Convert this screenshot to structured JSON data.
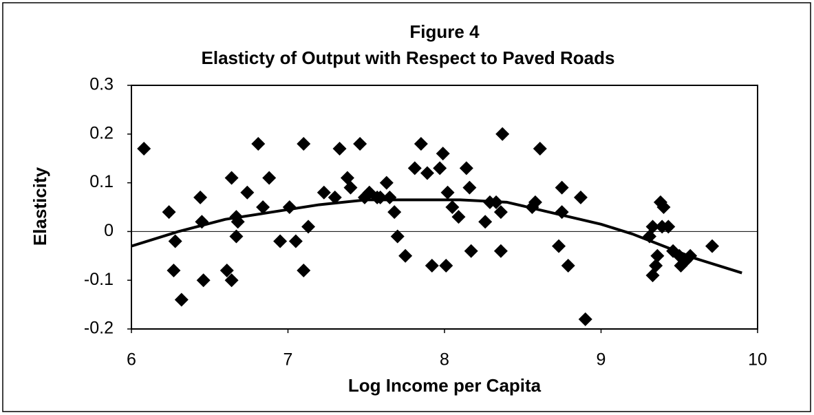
{
  "chart_data": {
    "type": "scatter",
    "title": "Figure 4",
    "subtitle": "Elasticty of Output with Respect to Paved Roads",
    "x_label": "Log Income per Capita",
    "y_label": "Elasticity",
    "xlim": [
      6,
      10
    ],
    "ylim": [
      -0.2,
      0.3
    ],
    "xticks": [
      6,
      7,
      8,
      9,
      10
    ],
    "yticks": [
      0.3,
      0.2,
      0.1,
      0,
      -0.1,
      -0.2
    ],
    "reference_line": 0,
    "series": [
      {
        "type": "scatter",
        "color": "#000000",
        "x": [
          6.08,
          6.24,
          6.28,
          6.27,
          6.32,
          6.44,
          6.45,
          6.46,
          6.61,
          6.64,
          6.64,
          6.67,
          6.68,
          6.67,
          6.74,
          6.81,
          6.84,
          6.88,
          6.95,
          7.01,
          7.05,
          7.1,
          7.1,
          7.13,
          7.23,
          7.3,
          7.33,
          7.38,
          7.4,
          7.46,
          7.49,
          7.52,
          7.57,
          7.59,
          7.63,
          7.65,
          7.68,
          7.7,
          7.75,
          7.81,
          7.85,
          7.89,
          7.92,
          7.97,
          7.99,
          8.01,
          8.02,
          8.05,
          8.09,
          8.14,
          8.16,
          8.17,
          8.26,
          8.29,
          8.33,
          8.36,
          8.36,
          8.37,
          8.56,
          8.58,
          8.61,
          8.73,
          8.75,
          8.75,
          8.79,
          8.87,
          8.9,
          9.31,
          9.33,
          9.33,
          9.35,
          9.36,
          9.38,
          9.39,
          9.4,
          9.43,
          9.46,
          9.5,
          9.51,
          9.54,
          9.57,
          9.71
        ],
        "values": [
          0.17,
          0.04,
          -0.02,
          -0.08,
          -0.14,
          0.07,
          0.02,
          -0.1,
          -0.08,
          -0.1,
          0.11,
          0.03,
          0.02,
          -0.01,
          0.08,
          0.18,
          0.05,
          0.11,
          -0.02,
          0.05,
          -0.02,
          0.18,
          -0.08,
          0.01,
          0.08,
          0.07,
          0.17,
          0.11,
          0.09,
          0.18,
          0.07,
          0.08,
          0.07,
          0.07,
          0.1,
          0.07,
          0.04,
          -0.01,
          -0.05,
          0.13,
          0.18,
          0.12,
          -0.07,
          0.13,
          0.16,
          -0.07,
          0.08,
          0.05,
          0.03,
          0.13,
          0.09,
          -0.04,
          0.02,
          0.06,
          0.06,
          0.04,
          -0.04,
          0.2,
          0.05,
          0.06,
          0.17,
          -0.03,
          0.09,
          0.04,
          -0.07,
          0.07,
          -0.18,
          -0.01,
          0.01,
          -0.09,
          -0.07,
          -0.05,
          0.06,
          0.01,
          0.05,
          0.01,
          -0.04,
          -0.05,
          -0.07,
          -0.06,
          -0.05,
          -0.03
        ]
      },
      {
        "type": "line",
        "color": "#000000",
        "x": [
          6.0,
          6.3,
          6.6,
          6.9,
          7.2,
          7.5,
          7.8,
          8.1,
          8.4,
          8.6,
          8.8,
          9.0,
          9.2,
          9.4,
          9.6,
          9.9
        ],
        "values": [
          -0.03,
          0.0,
          0.025,
          0.04,
          0.055,
          0.065,
          0.065,
          0.065,
          0.06,
          0.045,
          0.03,
          0.015,
          -0.005,
          -0.03,
          -0.055,
          -0.085
        ]
      }
    ]
  }
}
